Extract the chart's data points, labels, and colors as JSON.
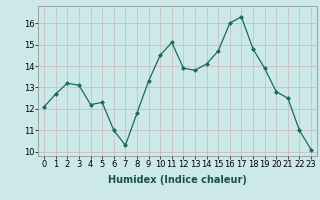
{
  "x": [
    0,
    1,
    2,
    3,
    4,
    5,
    6,
    7,
    8,
    9,
    10,
    11,
    12,
    13,
    14,
    15,
    16,
    17,
    18,
    19,
    20,
    21,
    22,
    23
  ],
  "y": [
    12.1,
    12.7,
    13.2,
    13.1,
    12.2,
    12.3,
    11.0,
    10.3,
    11.8,
    13.3,
    14.5,
    15.1,
    13.9,
    13.8,
    14.1,
    14.7,
    16.0,
    16.3,
    14.8,
    13.9,
    12.8,
    12.5,
    11.0,
    10.1
  ],
  "line_color": "#1a6b5a",
  "marker": "D",
  "marker_size": 2,
  "bg_color": "#cce8e8",
  "grid_color_major": "#b0d0d0",
  "grid_color_minor": "#d4e8e8",
  "xlabel": "Humidex (Indice chaleur)",
  "xlim": [
    -0.5,
    23.5
  ],
  "ylim": [
    9.8,
    16.8
  ],
  "yticks": [
    10,
    11,
    12,
    13,
    14,
    15,
    16
  ],
  "xticks": [
    0,
    1,
    2,
    3,
    4,
    5,
    6,
    7,
    8,
    9,
    10,
    11,
    12,
    13,
    14,
    15,
    16,
    17,
    18,
    19,
    20,
    21,
    22,
    23
  ],
  "xlabel_fontsize": 7,
  "tick_fontsize": 6
}
